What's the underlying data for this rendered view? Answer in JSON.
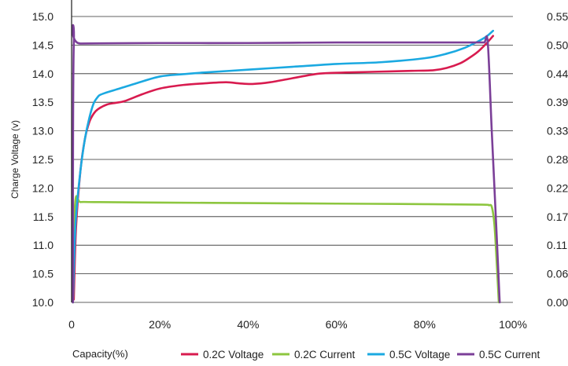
{
  "chart_data": {
    "type": "line",
    "title": "",
    "xlabel": "Capacity(%)",
    "ylabel": "Charge Voltage (v)",
    "y2label": "",
    "xlim": [
      0,
      100
    ],
    "ylim": [
      10.0,
      15.0
    ],
    "y2lim": [
      0.0,
      0.55
    ],
    "x_ticks": [
      "0",
      "20%",
      "40%",
      "60%",
      "80%",
      "100%"
    ],
    "y_ticks": [
      "10.0",
      "10.5",
      "11.0",
      "11.5",
      "12.0",
      "12.5",
      "13.0",
      "13.5",
      "14.0",
      "14.5",
      "15.0"
    ],
    "y2_ticks": [
      "0.00",
      "0.06",
      "0.11",
      "0.17",
      "0.22",
      "0.28",
      "0.33",
      "0.39",
      "0.44",
      "0.50",
      "0.55"
    ],
    "grid": "horizontal",
    "legend_position": "bottom",
    "series": [
      {
        "name": "0.2C Voltage",
        "axis": "left",
        "color": "#d81b4f",
        "x": [
          0.5,
          1,
          2,
          3,
          4,
          5,
          6,
          8,
          10,
          12,
          16,
          20,
          25,
          30,
          35,
          38,
          41,
          45,
          50,
          55,
          58,
          62,
          67,
          72,
          77,
          82,
          85,
          88,
          90,
          92,
          94,
          95.5
        ],
        "y": [
          10.05,
          11.3,
          12.3,
          12.85,
          13.15,
          13.3,
          13.38,
          13.46,
          13.49,
          13.52,
          13.64,
          13.74,
          13.8,
          13.83,
          13.85,
          13.83,
          13.82,
          13.85,
          13.92,
          13.99,
          14.01,
          14.02,
          14.03,
          14.04,
          14.05,
          14.06,
          14.1,
          14.18,
          14.27,
          14.38,
          14.53,
          14.66
        ]
      },
      {
        "name": "0.2C Current",
        "axis": "right",
        "color": "#8dc63f",
        "x": [
          0.3,
          0.8,
          2,
          5,
          20,
          40,
          60,
          80,
          93,
          94.5,
          95.2,
          95.8,
          96.3,
          96.8
        ],
        "y": [
          0.0,
          0.19,
          0.193,
          0.193,
          0.192,
          0.191,
          0.19,
          0.189,
          0.188,
          0.187,
          0.184,
          0.15,
          0.08,
          0.0
        ]
      },
      {
        "name": "0.5C Voltage",
        "axis": "left",
        "color": "#1ba9e1",
        "x": [
          0.3,
          0.6,
          1,
          2,
          3,
          4,
          5,
          6,
          6.5,
          7.5,
          10,
          15,
          20,
          25,
          30,
          40,
          50,
          60,
          70,
          80,
          85,
          89,
          92,
          94,
          95.5
        ],
        "y": [
          10.0,
          10.8,
          11.5,
          12.3,
          12.85,
          13.22,
          13.48,
          13.6,
          13.63,
          13.66,
          13.72,
          13.84,
          13.95,
          13.99,
          14.02,
          14.07,
          14.12,
          14.17,
          14.2,
          14.27,
          14.35,
          14.45,
          14.56,
          14.65,
          14.75
        ]
      },
      {
        "name": "0.5C Current",
        "axis": "right",
        "color": "#7b3f98",
        "x": [
          0.3,
          0.5,
          2,
          20,
          40,
          60,
          80,
          92,
          93.5,
          94.3,
          95.2,
          96.2,
          97.0
        ],
        "y": [
          0.0,
          0.498,
          0.498,
          0.499,
          0.499,
          0.5,
          0.5,
          0.5,
          0.5,
          0.5,
          0.33,
          0.15,
          0.0
        ]
      }
    ]
  }
}
